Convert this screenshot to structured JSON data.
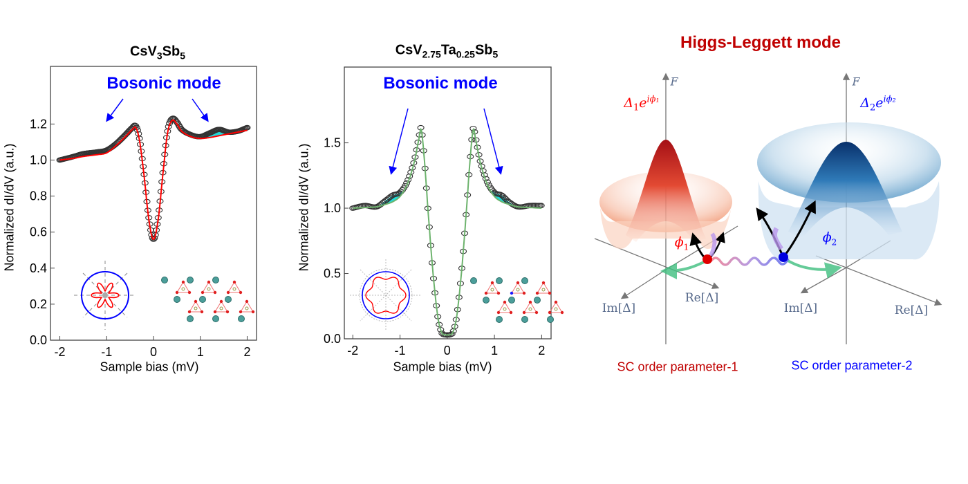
{
  "chart_data": [
    {
      "type": "line",
      "title_parts": [
        "CsV",
        "3",
        "Sb",
        "5"
      ],
      "annotation": "Bosonic mode",
      "xlabel": "Sample bias (mV)",
      "ylabel": "Normalized dI/dV (a.u.)",
      "xlim": [
        -2.2,
        2.2
      ],
      "ylim": [
        0,
        1.52
      ],
      "xticks": [
        -2,
        -1,
        0,
        1,
        2
      ],
      "xtick_labels": [
        "-2",
        "-1",
        "0",
        "1",
        "2"
      ],
      "yticks": [
        0,
        0.2,
        0.4,
        0.6,
        0.8,
        1.0,
        1.2
      ],
      "ytick_labels": [
        "0.0",
        "0.2",
        "0.4",
        "0.6",
        "0.8",
        "1.0",
        "1.2"
      ],
      "series": [
        {
          "role": "data",
          "marker": "open-circle",
          "color": "#333333",
          "x": [
            -2.0,
            -1.7,
            -1.5,
            -1.2,
            -1.0,
            -0.8,
            -0.6,
            -0.45,
            -0.38,
            -0.3,
            -0.2,
            -0.1,
            0.0,
            0.1,
            0.2,
            0.3,
            0.4,
            0.5,
            0.6,
            0.8,
            1.0,
            1.2,
            1.4,
            1.6,
            1.8,
            2.0
          ],
          "y": [
            1.0,
            1.02,
            1.035,
            1.045,
            1.055,
            1.09,
            1.14,
            1.18,
            1.19,
            1.12,
            0.92,
            0.68,
            0.56,
            0.68,
            0.93,
            1.16,
            1.23,
            1.21,
            1.17,
            1.14,
            1.13,
            1.15,
            1.17,
            1.155,
            1.16,
            1.18
          ]
        },
        {
          "role": "fit",
          "color": "#ff0000",
          "x": [
            -2.0,
            -1.7,
            -1.5,
            -1.2,
            -1.0,
            -0.8,
            -0.6,
            -0.45,
            -0.38,
            -0.3,
            -0.2,
            -0.1,
            0.0,
            0.1,
            0.2,
            0.3,
            0.4,
            0.5,
            0.6,
            0.8,
            1.0,
            1.2,
            1.4,
            1.6,
            1.8,
            2.0
          ],
          "y": [
            1.0,
            1.01,
            1.02,
            1.03,
            1.04,
            1.08,
            1.13,
            1.17,
            1.18,
            1.11,
            0.91,
            0.67,
            0.56,
            0.67,
            0.92,
            1.15,
            1.22,
            1.2,
            1.16,
            1.13,
            1.12,
            1.125,
            1.135,
            1.145,
            1.155,
            1.165
          ]
        }
      ],
      "shaded_ranges": [
        [
          -1.5,
          -1.0
        ],
        [
          1.0,
          1.7
        ]
      ],
      "shade_color": "#22d8d8"
    },
    {
      "type": "line",
      "title_parts": [
        "CsV",
        "2.75",
        "Ta",
        "0.25",
        "Sb",
        "5"
      ],
      "annotation": "Bosonic mode",
      "xlabel": "Sample bias (mV)",
      "ylabel": "Normalized dI/dV (a.u.)",
      "xlim": [
        -2.18,
        2.2
      ],
      "ylim": [
        0,
        2.08
      ],
      "xticks": [
        -2,
        -1,
        0,
        1,
        2
      ],
      "xtick_labels": [
        "-2",
        "-1",
        "0",
        "1",
        "2"
      ],
      "yticks": [
        0,
        0.5,
        1.0,
        1.5
      ],
      "ytick_labels": [
        "0.0",
        "0.5",
        "1.0",
        "1.5"
      ],
      "series": [
        {
          "role": "data",
          "marker": "open-circle",
          "color": "#333333",
          "x": [
            -2.0,
            -1.75,
            -1.5,
            -1.3,
            -1.15,
            -1.0,
            -0.85,
            -0.7,
            -0.6,
            -0.55,
            -0.48,
            -0.4,
            -0.3,
            -0.2,
            -0.12,
            -0.05,
            0.0,
            0.05,
            0.12,
            0.2,
            0.3,
            0.4,
            0.48,
            0.55,
            0.6,
            0.7,
            0.85,
            1.0,
            1.15,
            1.3,
            1.5,
            1.75,
            2.0
          ],
          "y": [
            1.0,
            1.02,
            1.01,
            1.06,
            1.1,
            1.12,
            1.2,
            1.36,
            1.54,
            1.61,
            1.35,
            0.95,
            0.5,
            0.17,
            0.05,
            0.03,
            0.03,
            0.03,
            0.05,
            0.17,
            0.5,
            0.95,
            1.35,
            1.61,
            1.54,
            1.36,
            1.2,
            1.12,
            1.1,
            1.05,
            1.01,
            1.02,
            1.02
          ]
        },
        {
          "role": "fit",
          "color": "#6db36d",
          "x": [
            -2.0,
            -1.75,
            -1.5,
            -1.3,
            -1.15,
            -1.0,
            -0.85,
            -0.7,
            -0.6,
            -0.55,
            -0.48,
            -0.4,
            -0.3,
            -0.2,
            -0.12,
            -0.05,
            0.0,
            0.05,
            0.12,
            0.2,
            0.3,
            0.4,
            0.48,
            0.55,
            0.6,
            0.7,
            0.85,
            1.0,
            1.15,
            1.3,
            1.5,
            1.75,
            2.0
          ],
          "y": [
            1.0,
            1.005,
            1.01,
            1.03,
            1.05,
            1.09,
            1.18,
            1.35,
            1.53,
            1.6,
            1.35,
            0.95,
            0.5,
            0.17,
            0.05,
            0.03,
            0.03,
            0.03,
            0.05,
            0.17,
            0.5,
            0.95,
            1.35,
            1.6,
            1.53,
            1.35,
            1.18,
            1.09,
            1.05,
            1.03,
            1.01,
            1.005,
            1.0
          ]
        }
      ],
      "shaded_ranges": [
        [
          -1.4,
          -0.95
        ],
        [
          0.95,
          1.4
        ]
      ],
      "shade_color": "#22d8d8"
    }
  ],
  "diagram": {
    "title": "Higgs-Leggett mode",
    "title_color": "#c00000",
    "left": {
      "order_param": "Δ₁e^{iϕ₁}",
      "order_param_base": "Δ",
      "order_param_sub": "1",
      "order_param_e": "e",
      "order_param_sup": "iϕ₁",
      "phase": "ϕ",
      "phase_sub": "1",
      "axis_f": "F",
      "axis_im": "Im[Δ]",
      "axis_re": "Re[Δ]",
      "caption": "SC order parameter-1",
      "color": "#c00000"
    },
    "right": {
      "order_param": "Δ₂e^{iϕ₂}",
      "order_param_base": "Δ",
      "order_param_sub": "2",
      "order_param_e": "e",
      "order_param_sup": "iϕ₂",
      "phase": "ϕ",
      "phase_sub": "2",
      "axis_f": "F",
      "axis_im": "Im[Δ]",
      "axis_re": "Re[Δ]",
      "caption": "SC order parameter-2",
      "color": "#0000ff"
    }
  }
}
